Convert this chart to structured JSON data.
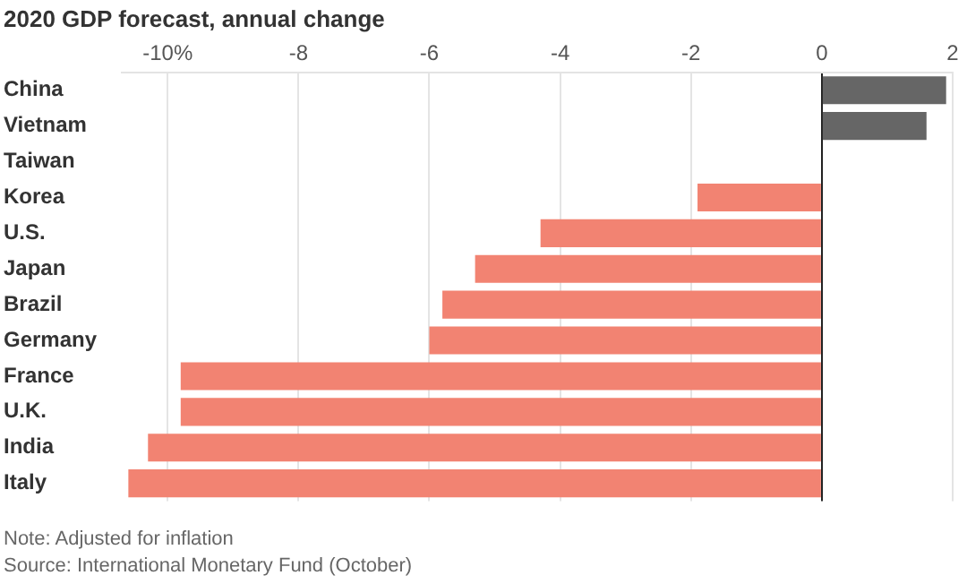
{
  "chart_data": {
    "type": "bar",
    "orientation": "horizontal",
    "title": "2020 GDP forecast, annual change",
    "categories": [
      "China",
      "Vietnam",
      "Taiwan",
      "Korea",
      "U.S.",
      "Japan",
      "Brazil",
      "Germany",
      "France",
      "U.K.",
      "India",
      "Italy"
    ],
    "values": [
      1.9,
      1.6,
      0,
      -1.9,
      -4.3,
      -5.3,
      -5.8,
      -6.0,
      -9.8,
      -9.8,
      -10.3,
      -10.6
    ],
    "colors": [
      "#666666",
      "#666666",
      "#666666",
      "#f28372",
      "#f28372",
      "#f28372",
      "#f28372",
      "#f28372",
      "#f28372",
      "#f28372",
      "#f28372",
      "#f28372"
    ],
    "xlim": [
      -10.7,
      2
    ],
    "xticks": [
      {
        "value": -10,
        "label": "-10%"
      },
      -8,
      -6,
      -4,
      -2,
      0,
      2
    ],
    "grid": "x",
    "annotations": [
      "Note: Adjusted for inflation",
      "Source: International Monetary Fund (October)"
    ]
  }
}
